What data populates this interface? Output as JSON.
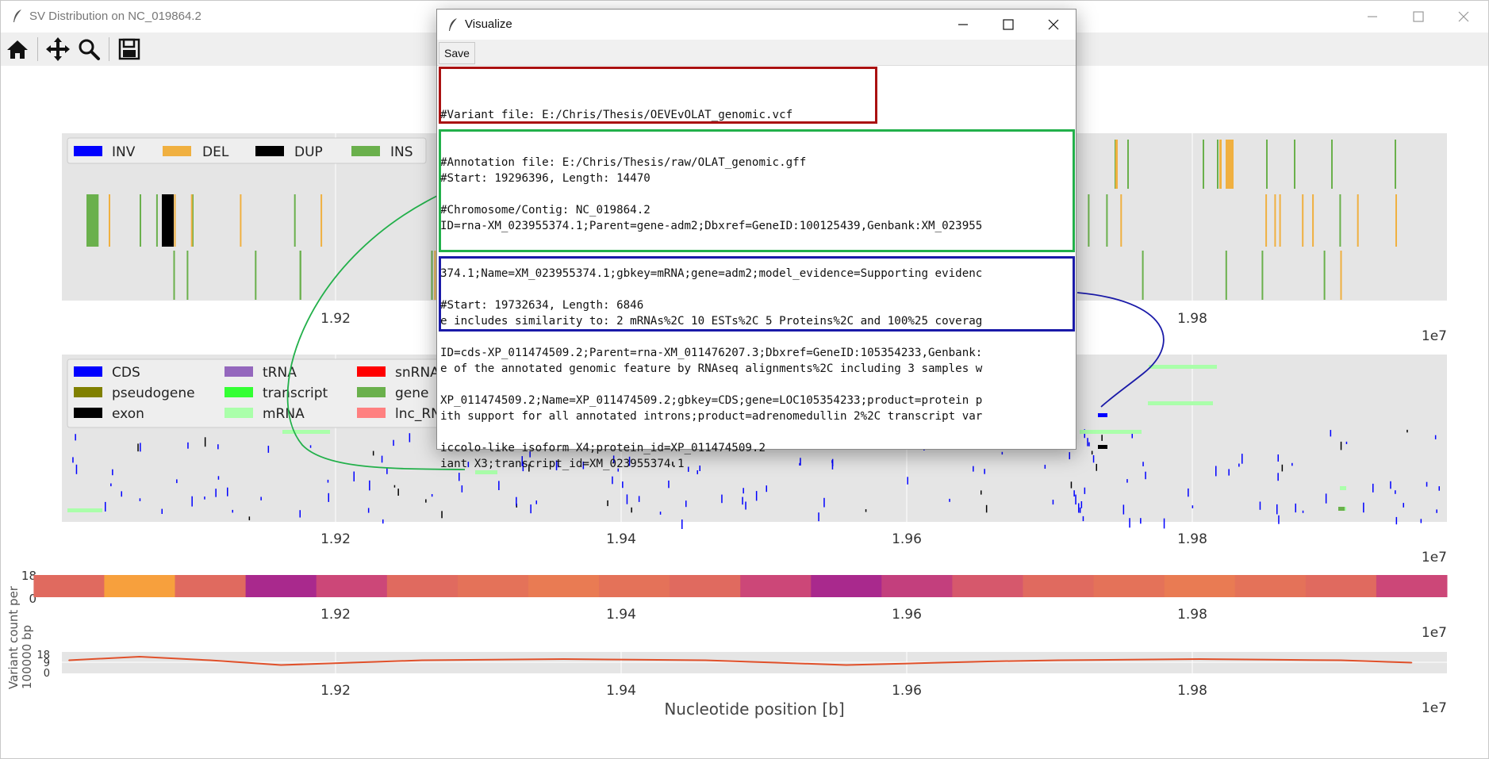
{
  "main_window": {
    "title": "SV Distribution on NC_019864.2"
  },
  "toolbar": {
    "home": "home-icon",
    "pan": "move-icon",
    "zoom": "zoom-icon",
    "save": "save-icon"
  },
  "sv_legend": [
    "INV",
    "DEL",
    "DUP",
    "INS"
  ],
  "annotation_legend": [
    "CDS",
    "tRNA",
    "snRNA",
    "pseudogene",
    "transcript",
    "gene",
    "exon",
    "mRNA",
    "lnc_RNA"
  ],
  "axis": {
    "ticks": [
      "1.92",
      "1.94",
      "1.96",
      "1.98"
    ],
    "ticks_top": [
      "1.92",
      "1.98"
    ],
    "offset": "1e7",
    "xlabel": "Nucleotide position [b]",
    "ylabel": "Variant count per 100000 bp",
    "ylabel_line1": "Variant count per",
    "ylabel_line2": "100000 bp",
    "heat_ticks": [
      "18",
      "0"
    ],
    "line_ticks": [
      "18",
      "9",
      "0"
    ]
  },
  "colors": {
    "INV": "#0000ff",
    "DEL": "#f0b040",
    "DUP": "#000000",
    "INS": "#6ab04c",
    "CDS": "#0000ff",
    "tRNA": "#9467bd",
    "snRNA": "#ff0000",
    "pseudogene": "#808000",
    "transcript": "#33ff33",
    "gene": "#6ab04c",
    "exon": "#000000",
    "mRNA": "#aaffaa",
    "lnc_RNA": "#ff8080",
    "density_line": "#e0502a"
  },
  "dialog": {
    "title": "Visualize",
    "save_label": "Save",
    "header_lines": [
      "#Variant file: E:/Chris/Thesis/OEVEvOLAT_genomic.vcf",
      "#Annotation file: E:/Chris/Thesis/raw/OLAT_genomic.gff",
      "#Chromosome/Contig: NC_019864.2"
    ],
    "record1_lines": [
      "#Start: 19296396, Length: 14470",
      "ID=rna-XM_023955374.1;Parent=gene-adm2;Dbxref=GeneID:100125439,Genbank:XM_023955",
      "374.1;Name=XM_023955374.1;gbkey=mRNA;gene=adm2;model_evidence=Supporting evidenc",
      "e includes similarity to: 2 mRNAs%2C 10 ESTs%2C 5 Proteins%2C and 100%25 coverag",
      "e of the annotated genomic feature by RNAseq alignments%2C including 3 samples w",
      "ith support for all annotated introns;product=adrenomedullin 2%2C transcript var",
      "iant X3;transcript_id=XM_023955374.1"
    ],
    "record2_lines": [
      "#Start: 19732634, Length: 6846",
      "ID=cds-XP_011474509.2;Parent=rna-XM_011476207.3;Dbxref=GeneID:105354233,Genbank:",
      "XP_011474509.2;Name=XP_011474509.2;gbkey=CDS;gene=LOC105354233;product=protein p",
      "iccolo-like isoform X4;protein_id=XP_011474509.2"
    ]
  },
  "annotation_box_colors": {
    "header": "#aa1111",
    "record1": "#22b04a",
    "record2": "#1a1aa8"
  },
  "chart_data": {
    "type": "line",
    "x": [
      19025000,
      19075000,
      19125000,
      19175000,
      19225000,
      19275000,
      19325000,
      19375000,
      19425000,
      19475000,
      19525000,
      19575000,
      19625000,
      19675000,
      19725000,
      19775000,
      19825000,
      19875000,
      19925000,
      19975000
    ],
    "series": [
      {
        "values": [
          11,
          14,
          11,
          7,
          9,
          11,
          11.5,
          12,
          11.5,
          11,
          9,
          7,
          8.5,
          10,
          11,
          11.5,
          12,
          11.5,
          11,
          9
        ]
      }
    ],
    "xlabel": "Nucleotide position [b]",
    "ylabel": "Variant count per 100000 bp",
    "ylim": [
      0,
      18
    ],
    "grid": true
  }
}
